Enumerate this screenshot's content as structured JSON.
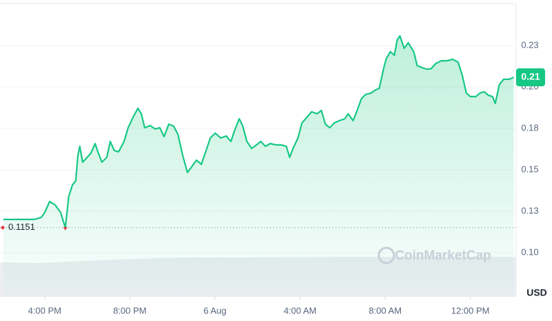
{
  "chart_data": {
    "type": "line",
    "color": "#16c784",
    "unit": "USD",
    "watermark": "CoinMarketCap",
    "open_price": 0.1151,
    "current_price": {
      "value": 0.2058,
      "label": "0.21"
    },
    "xlim": [
      -10.1,
      14.15
    ],
    "ylim": [
      0.0733,
      0.2504
    ],
    "grid": true,
    "xticks": [
      {
        "value": -8,
        "label": "4:00 PM"
      },
      {
        "value": -4,
        "label": "8:00 PM"
      },
      {
        "value": 0,
        "label": "6 Aug"
      },
      {
        "value": 4,
        "label": "4:00 AM"
      },
      {
        "value": 8,
        "label": "8:00 AM"
      },
      {
        "value": 12,
        "label": "12:00 PM"
      }
    ],
    "yticks": [
      {
        "value": 0.1,
        "label": "0.10"
      },
      {
        "value": 0.125,
        "label": "0.13"
      },
      0.15,
      {
        "value": 0.175,
        "label": "0.18"
      },
      {
        "value": 0.2,
        "label": "0.20"
      },
      {
        "value": 0.225,
        "label": "0.23"
      }
    ],
    "x": [
      -9.94,
      -9.13,
      -8.49,
      -8.16,
      -8.0,
      -7.77,
      -7.51,
      -7.25,
      -7.03,
      -6.87,
      -6.7,
      -6.54,
      -6.44,
      -6.35,
      -6.22,
      -6.06,
      -5.83,
      -5.63,
      -5.5,
      -5.31,
      -5.08,
      -4.92,
      -4.73,
      -4.53,
      -4.27,
      -4.08,
      -3.85,
      -3.62,
      -3.46,
      -3.3,
      -3.04,
      -2.81,
      -2.59,
      -2.39,
      -2.17,
      -1.94,
      -1.74,
      -1.52,
      -1.29,
      -1.1,
      -0.87,
      -0.64,
      -0.38,
      -0.22,
      0.01,
      0.27,
      0.53,
      0.75,
      0.91,
      1.14,
      1.3,
      1.5,
      1.72,
      1.95,
      2.15,
      2.37,
      2.6,
      2.86,
      3.12,
      3.35,
      3.51,
      3.67,
      3.9,
      4.09,
      4.32,
      4.54,
      4.8,
      5.0,
      5.19,
      5.39,
      5.61,
      5.84,
      6.1,
      6.26,
      6.49,
      6.68,
      6.88,
      7.07,
      7.33,
      7.56,
      7.72,
      7.92,
      8.05,
      8.24,
      8.43,
      8.56,
      8.69,
      8.89,
      9.08,
      9.34,
      9.5,
      9.73,
      9.93,
      10.15,
      10.38,
      10.64,
      10.9,
      11.16,
      11.42,
      11.61,
      11.81,
      12.0,
      12.26,
      12.45,
      12.65,
      12.84,
      13.04,
      13.17,
      13.36,
      13.56,
      13.82,
      14.04
    ],
    "values": [
      0.12,
      0.12,
      0.12,
      0.1213,
      0.1242,
      0.1308,
      0.1288,
      0.1242,
      0.115,
      0.1338,
      0.1408,
      0.1433,
      0.1588,
      0.1642,
      0.1546,
      0.1567,
      0.16,
      0.1658,
      0.1608,
      0.1546,
      0.1575,
      0.1671,
      0.1617,
      0.1608,
      0.1671,
      0.1754,
      0.1817,
      0.1871,
      0.1838,
      0.1754,
      0.1767,
      0.1746,
      0.1754,
      0.17,
      0.1775,
      0.1763,
      0.1713,
      0.1588,
      0.1483,
      0.1517,
      0.1558,
      0.1533,
      0.1629,
      0.1692,
      0.1721,
      0.1692,
      0.1704,
      0.1671,
      0.1733,
      0.1808,
      0.1767,
      0.1671,
      0.1629,
      0.165,
      0.1671,
      0.1642,
      0.1658,
      0.165,
      0.165,
      0.1642,
      0.1575,
      0.1629,
      0.1692,
      0.1783,
      0.1817,
      0.185,
      0.1838,
      0.1858,
      0.1775,
      0.1754,
      0.1783,
      0.1796,
      0.1808,
      0.1838,
      0.1796,
      0.1858,
      0.1929,
      0.1954,
      0.1963,
      0.1983,
      0.1992,
      0.2108,
      0.2171,
      0.2213,
      0.2192,
      0.2283,
      0.2308,
      0.2233,
      0.2267,
      0.2213,
      0.2129,
      0.2117,
      0.2108,
      0.211,
      0.2142,
      0.2158,
      0.2158,
      0.2167,
      0.215,
      0.2075,
      0.1963,
      0.1942,
      0.1942,
      0.1963,
      0.1971,
      0.195,
      0.1942,
      0.19,
      0.2013,
      0.2046,
      0.2046,
      0.2058
    ]
  }
}
